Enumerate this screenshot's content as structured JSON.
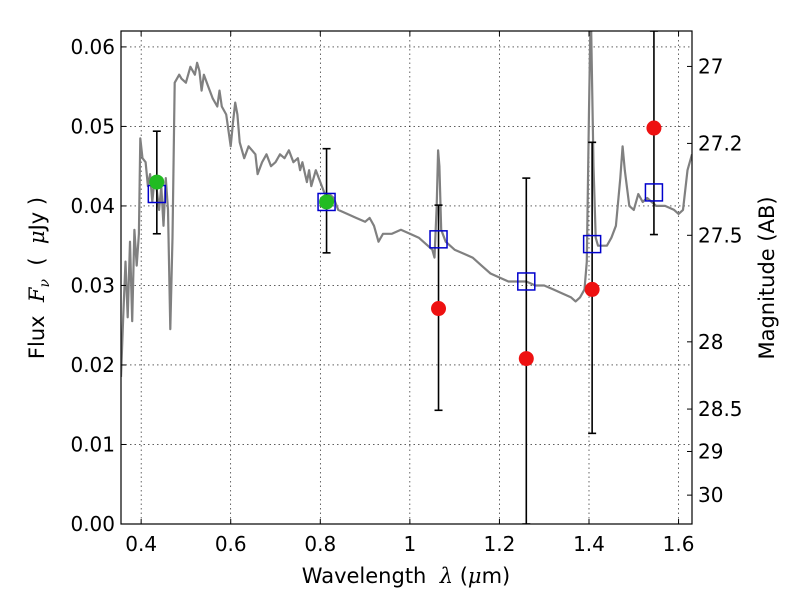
{
  "chart_data": {
    "type": "scatter",
    "xlabel_prefix": "Wavelength  ",
    "xlabel_symbol": "λ",
    "xlabel_unit_open": " (",
    "xlabel_unit_mu": "μ",
    "xlabel_unit_close": "m)",
    "ylabel_prefix": "Flux  ",
    "ylabel_symbol_F": "F",
    "ylabel_symbol_sub": "ν",
    "ylabel_unit_open": "  (  ",
    "ylabel_unit_mu": "μ",
    "ylabel_unit_close": "Jy  )",
    "y2label": "Magnitude (AB)",
    "xlim": [
      0.355,
      1.63
    ],
    "ylim": [
      0.0,
      0.062
    ],
    "x_ticks": [
      {
        "value": 0.4,
        "label": "0.4"
      },
      {
        "value": 0.6,
        "label": "0.6"
      },
      {
        "value": 0.8,
        "label": "0.8"
      },
      {
        "value": 1.0,
        "label": "1"
      },
      {
        "value": 1.2,
        "label": "1.2"
      },
      {
        "value": 1.4,
        "label": "1.4"
      },
      {
        "value": 1.6,
        "label": "1.6"
      }
    ],
    "y_ticks": [
      {
        "value": 0.0,
        "label": "0.00"
      },
      {
        "value": 0.01,
        "label": "0.01"
      },
      {
        "value": 0.02,
        "label": "0.02"
      },
      {
        "value": 0.03,
        "label": "0.03"
      },
      {
        "value": 0.04,
        "label": "0.04"
      },
      {
        "value": 0.05,
        "label": "0.05"
      },
      {
        "value": 0.06,
        "label": "0.06"
      }
    ],
    "mag_ticks": [
      {
        "mag": 27.0,
        "label": "27"
      },
      {
        "mag": 27.2,
        "label": "27.2"
      },
      {
        "mag": 27.5,
        "label": "27.5"
      },
      {
        "mag": 28.0,
        "label": "28"
      },
      {
        "mag": 28.5,
        "label": "28.5"
      },
      {
        "mag": 29.0,
        "label": "29"
      },
      {
        "mag": 30.0,
        "label": "30"
      }
    ],
    "grid": true,
    "colors": {
      "sed": "#808080",
      "model": "#0000cc",
      "detected": "#22bb22",
      "nondetected": "#ee1111",
      "errorbar": "#000000"
    },
    "sed_curve": [
      [
        0.355,
        0.0185
      ],
      [
        0.36,
        0.026
      ],
      [
        0.365,
        0.033
      ],
      [
        0.37,
        0.026
      ],
      [
        0.375,
        0.0355
      ],
      [
        0.38,
        0.0255
      ],
      [
        0.385,
        0.037
      ],
      [
        0.39,
        0.0325
      ],
      [
        0.395,
        0.0365
      ],
      [
        0.398,
        0.0485
      ],
      [
        0.403,
        0.046
      ],
      [
        0.41,
        0.0455
      ],
      [
        0.415,
        0.0425
      ],
      [
        0.42,
        0.044
      ],
      [
        0.425,
        0.0405
      ],
      [
        0.43,
        0.0435
      ],
      [
        0.435,
        0.042
      ],
      [
        0.44,
        0.0395
      ],
      [
        0.445,
        0.0425
      ],
      [
        0.45,
        0.0375
      ],
      [
        0.455,
        0.0435
      ],
      [
        0.46,
        0.0395
      ],
      [
        0.465,
        0.0245
      ],
      [
        0.47,
        0.036
      ],
      [
        0.475,
        0.0555
      ],
      [
        0.485,
        0.0565
      ],
      [
        0.49,
        0.056
      ],
      [
        0.5,
        0.0555
      ],
      [
        0.51,
        0.0575
      ],
      [
        0.52,
        0.0565
      ],
      [
        0.525,
        0.058
      ],
      [
        0.53,
        0.057
      ],
      [
        0.535,
        0.0545
      ],
      [
        0.54,
        0.0565
      ],
      [
        0.55,
        0.055
      ],
      [
        0.56,
        0.0535
      ],
      [
        0.57,
        0.0525
      ],
      [
        0.575,
        0.0545
      ],
      [
        0.58,
        0.0525
      ],
      [
        0.59,
        0.0515
      ],
      [
        0.6,
        0.0475
      ],
      [
        0.605,
        0.0505
      ],
      [
        0.61,
        0.053
      ],
      [
        0.615,
        0.0515
      ],
      [
        0.62,
        0.048
      ],
      [
        0.63,
        0.046
      ],
      [
        0.64,
        0.0475
      ],
      [
        0.655,
        0.0465
      ],
      [
        0.66,
        0.044
      ],
      [
        0.67,
        0.0455
      ],
      [
        0.68,
        0.0465
      ],
      [
        0.69,
        0.045
      ],
      [
        0.7,
        0.0455
      ],
      [
        0.71,
        0.0465
      ],
      [
        0.72,
        0.046
      ],
      [
        0.73,
        0.047
      ],
      [
        0.74,
        0.0455
      ],
      [
        0.75,
        0.046
      ],
      [
        0.755,
        0.0445
      ],
      [
        0.76,
        0.0455
      ],
      [
        0.77,
        0.043
      ],
      [
        0.775,
        0.0445
      ],
      [
        0.78,
        0.0425
      ],
      [
        0.79,
        0.0445
      ],
      [
        0.8,
        0.043
      ],
      [
        0.81,
        0.0415
      ],
      [
        0.82,
        0.0415
      ],
      [
        0.83,
        0.041
      ],
      [
        0.84,
        0.0395
      ],
      [
        0.86,
        0.039
      ],
      [
        0.88,
        0.0385
      ],
      [
        0.9,
        0.038
      ],
      [
        0.91,
        0.0385
      ],
      [
        0.92,
        0.0375
      ],
      [
        0.93,
        0.0355
      ],
      [
        0.94,
        0.0365
      ],
      [
        0.96,
        0.0365
      ],
      [
        0.98,
        0.037
      ],
      [
        1.0,
        0.0365
      ],
      [
        1.02,
        0.036
      ],
      [
        1.04,
        0.035
      ],
      [
        1.05,
        0.0345
      ],
      [
        1.055,
        0.0335
      ],
      [
        1.06,
        0.04
      ],
      [
        1.063,
        0.047
      ],
      [
        1.066,
        0.045
      ],
      [
        1.07,
        0.037
      ],
      [
        1.08,
        0.0355
      ],
      [
        1.1,
        0.0345
      ],
      [
        1.12,
        0.034
      ],
      [
        1.14,
        0.0335
      ],
      [
        1.16,
        0.0325
      ],
      [
        1.18,
        0.0315
      ],
      [
        1.2,
        0.031
      ],
      [
        1.22,
        0.0305
      ],
      [
        1.24,
        0.0305
      ],
      [
        1.26,
        0.0305
      ],
      [
        1.28,
        0.03
      ],
      [
        1.3,
        0.03
      ],
      [
        1.32,
        0.0295
      ],
      [
        1.34,
        0.029
      ],
      [
        1.36,
        0.0285
      ],
      [
        1.37,
        0.028
      ],
      [
        1.38,
        0.0285
      ],
      [
        1.39,
        0.0295
      ],
      [
        1.395,
        0.033
      ],
      [
        1.4,
        0.052
      ],
      [
        1.403,
        0.062
      ],
      [
        1.405,
        0.062
      ],
      [
        1.41,
        0.045
      ],
      [
        1.415,
        0.036
      ],
      [
        1.42,
        0.035
      ],
      [
        1.44,
        0.035
      ],
      [
        1.45,
        0.036
      ],
      [
        1.46,
        0.0375
      ],
      [
        1.47,
        0.0435
      ],
      [
        1.475,
        0.0475
      ],
      [
        1.48,
        0.0445
      ],
      [
        1.49,
        0.04
      ],
      [
        1.5,
        0.0395
      ],
      [
        1.51,
        0.0415
      ],
      [
        1.52,
        0.0405
      ],
      [
        1.53,
        0.041
      ],
      [
        1.55,
        0.04
      ],
      [
        1.57,
        0.04
      ],
      [
        1.59,
        0.0395
      ],
      [
        1.6,
        0.039
      ],
      [
        1.61,
        0.0395
      ],
      [
        1.62,
        0.0445
      ],
      [
        1.63,
        0.0465
      ]
    ],
    "model_points": [
      {
        "x": 0.435,
        "y": 0.0415
      },
      {
        "x": 0.814,
        "y": 0.0405
      },
      {
        "x": 1.064,
        "y": 0.0358
      },
      {
        "x": 1.26,
        "y": 0.0305
      },
      {
        "x": 1.407,
        "y": 0.0352
      },
      {
        "x": 1.545,
        "y": 0.0417
      }
    ],
    "observations": [
      {
        "x": 0.435,
        "y": 0.043,
        "yerr_low": 0.0365,
        "yerr_high": 0.0494,
        "status": "detected"
      },
      {
        "x": 0.814,
        "y": 0.0405,
        "yerr_low": 0.0341,
        "yerr_high": 0.0472,
        "status": "detected"
      },
      {
        "x": 1.064,
        "y": 0.0271,
        "yerr_low": 0.0143,
        "yerr_high": 0.0401,
        "status": "nondetected"
      },
      {
        "x": 1.26,
        "y": 0.0208,
        "yerr_low": 0.0,
        "yerr_high": 0.0435,
        "status": "nondetected"
      },
      {
        "x": 1.407,
        "y": 0.0295,
        "yerr_low": 0.0114,
        "yerr_high": 0.048,
        "status": "nondetected"
      },
      {
        "x": 1.545,
        "y": 0.0498,
        "yerr_low": 0.0364,
        "yerr_high": 0.062,
        "status": "nondetected"
      }
    ]
  }
}
